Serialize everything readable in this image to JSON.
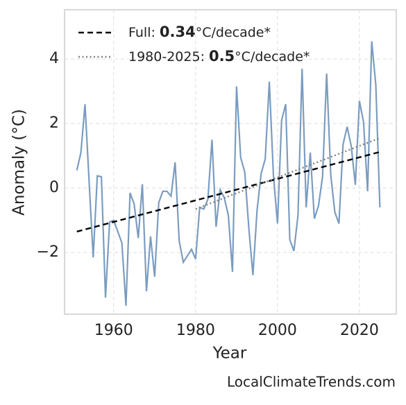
{
  "chart_data": {
    "type": "line",
    "xlabel": "Year",
    "ylabel": "Anomaly (°C)",
    "source": "LocalClimateTrends.com",
    "x": [
      1951,
      1952,
      1953,
      1954,
      1955,
      1956,
      1957,
      1958,
      1959,
      1960,
      1961,
      1962,
      1963,
      1964,
      1965,
      1966,
      1967,
      1968,
      1969,
      1970,
      1971,
      1972,
      1973,
      1974,
      1975,
      1976,
      1977,
      1978,
      1979,
      1980,
      1981,
      1982,
      1983,
      1984,
      1985,
      1986,
      1987,
      1988,
      1989,
      1990,
      1991,
      1992,
      1993,
      1994,
      1995,
      1996,
      1997,
      1998,
      1999,
      2000,
      2001,
      2002,
      2003,
      2004,
      2005,
      2006,
      2007,
      2008,
      2009,
      2010,
      2011,
      2012,
      2013,
      2014,
      2015,
      2016,
      2017,
      2018,
      2019,
      2020,
      2021,
      2022,
      2023,
      2024,
      2025
    ],
    "series": [
      {
        "color": "#7b9cc0",
        "style": "solid",
        "values": [
          0.55,
          1.1,
          2.6,
          0.2,
          -2.15,
          0.38,
          0.35,
          -3.4,
          -1.05,
          -1.0,
          -1.35,
          -1.7,
          -3.65,
          -0.15,
          -0.5,
          -1.55,
          0.12,
          -3.2,
          -1.5,
          -2.75,
          -0.45,
          -0.1,
          -0.1,
          -0.25,
          0.8,
          -1.65,
          -2.3,
          -2.1,
          -1.9,
          -2.2,
          -0.6,
          -0.65,
          -0.35,
          1.5,
          -1.2,
          -0.05,
          -0.3,
          -0.85,
          -2.6,
          3.15,
          0.95,
          0.5,
          -1.25,
          -2.7,
          -0.7,
          0.45,
          0.9,
          3.3,
          0.4,
          -1.1,
          2.1,
          2.6,
          -1.6,
          -1.95,
          -0.85,
          3.7,
          -0.6,
          1.1,
          -0.95,
          -0.55,
          0.35,
          3.55,
          0.4,
          -0.75,
          -1.1,
          1.35,
          1.9,
          1.3,
          0.1,
          2.7,
          2.05,
          -0.1,
          4.55,
          3.2,
          -0.6
        ]
      },
      {
        "name": [
          "Full:",
          "0.34",
          "°C/decade*"
        ],
        "color": "#000000",
        "style": "dashed",
        "x": [
          1951,
          2025
        ],
        "values": [
          -1.35,
          1.12
        ]
      },
      {
        "name": [
          "1980-2025:",
          "0.5",
          "°C/decade*"
        ],
        "color": "#808080",
        "style": "dotted",
        "x": [
          1980,
          2025
        ],
        "values": [
          -0.65,
          1.55
        ]
      }
    ],
    "xlim": [
      1948,
      2029
    ],
    "ylim": [
      -3.91,
      5.53
    ],
    "xticks": [
      1960,
      1980,
      2000,
      2020
    ],
    "yticks": [
      {
        "value": -2,
        "label": "−2"
      },
      0,
      2,
      4
    ],
    "grid": true,
    "legend": "upper left"
  }
}
